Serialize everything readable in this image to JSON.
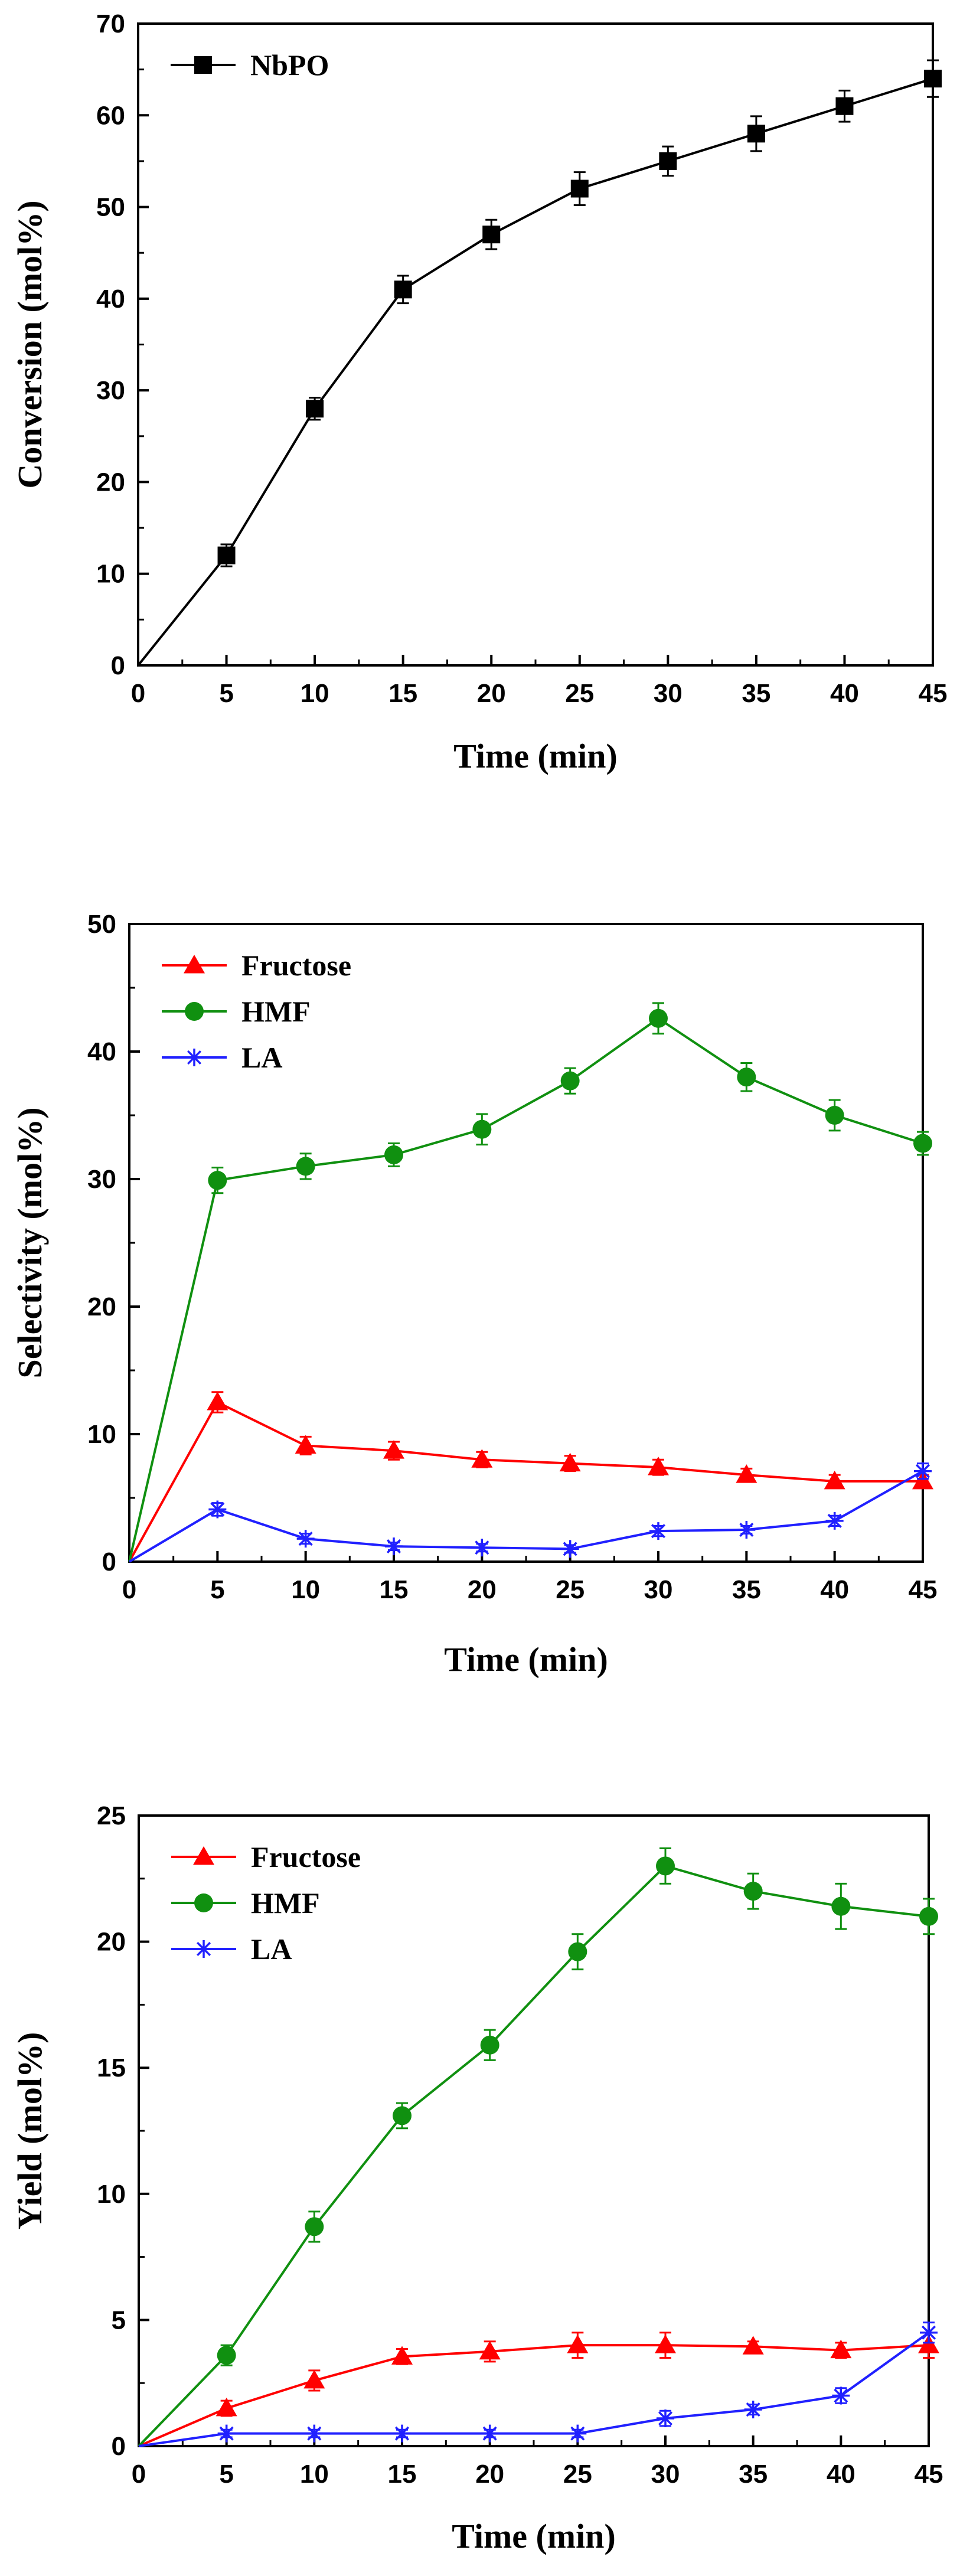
{
  "chart_data": [
    {
      "id": "conversion",
      "type": "line",
      "title": "",
      "xlabel": "Time (min)",
      "ylabel": "Conversion (mol%)",
      "xlim": [
        0,
        45
      ],
      "ylim": [
        0,
        70
      ],
      "xticks": [
        0,
        5,
        10,
        15,
        20,
        25,
        30,
        35,
        40,
        45
      ],
      "yticks": [
        0,
        10,
        20,
        30,
        40,
        50,
        60,
        70
      ],
      "grid": false,
      "legend": "top-left",
      "series": [
        {
          "name": "NbPO",
          "color": "#000000",
          "marker": "square",
          "x": [
            0,
            5,
            10,
            15,
            20,
            25,
            30,
            35,
            40,
            45
          ],
          "y": [
            0,
            12,
            28,
            41,
            47,
            52,
            55,
            58,
            61,
            64
          ],
          "err": [
            0,
            1.2,
            1.2,
            1.5,
            1.6,
            1.8,
            1.6,
            1.9,
            1.7,
            2.0
          ]
        }
      ]
    },
    {
      "id": "selectivity",
      "type": "line",
      "title": "",
      "xlabel": "Time (min)",
      "ylabel": "Selectivity (mol%)",
      "xlim": [
        0,
        45
      ],
      "ylim": [
        0,
        50
      ],
      "xticks": [
        0,
        5,
        10,
        15,
        20,
        25,
        30,
        35,
        40,
        45
      ],
      "yticks": [
        0,
        10,
        20,
        30,
        40,
        50
      ],
      "grid": false,
      "legend": "top-left",
      "series": [
        {
          "name": "Fructose",
          "color": "#ff0000",
          "marker": "triangle",
          "x": [
            0,
            5,
            10,
            15,
            20,
            25,
            30,
            35,
            40,
            45
          ],
          "y": [
            0,
            12.5,
            9.1,
            8.7,
            8.0,
            7.7,
            7.4,
            6.8,
            6.3,
            6.3
          ],
          "err": [
            0,
            0.8,
            0.7,
            0.7,
            0.6,
            0.6,
            0.6,
            0.5,
            0.5,
            0.5
          ]
        },
        {
          "name": "HMF",
          "color": "#109010",
          "marker": "circle",
          "x": [
            0,
            5,
            10,
            15,
            20,
            25,
            30,
            35,
            40,
            45
          ],
          "y": [
            0,
            29.9,
            31.0,
            31.9,
            33.9,
            37.7,
            42.6,
            38.0,
            35.0,
            32.8
          ],
          "err": [
            0,
            1.0,
            1.0,
            0.9,
            1.2,
            1.0,
            1.2,
            1.1,
            1.2,
            0.9
          ]
        },
        {
          "name": "LA",
          "color": "#2020ff",
          "marker": "asterisk",
          "x": [
            0,
            5,
            10,
            15,
            20,
            25,
            30,
            35,
            40,
            45
          ],
          "y": [
            0,
            4.1,
            1.8,
            1.2,
            1.1,
            1.0,
            2.4,
            2.5,
            3.2,
            7.1
          ],
          "err": [
            0,
            0.5,
            0.4,
            0.3,
            0.3,
            0.3,
            0.4,
            0.3,
            0.4,
            0.6
          ]
        }
      ]
    },
    {
      "id": "yield",
      "type": "line",
      "title": "",
      "xlabel": "Time (min)",
      "ylabel": "Yield (mol%)",
      "xlim": [
        0,
        45
      ],
      "ylim": [
        0,
        25
      ],
      "xticks": [
        0,
        5,
        10,
        15,
        20,
        25,
        30,
        35,
        40,
        45
      ],
      "yticks": [
        0,
        5,
        10,
        15,
        20,
        25
      ],
      "grid": false,
      "legend": "top-left",
      "series": [
        {
          "name": "Fructose",
          "color": "#ff0000",
          "marker": "triangle",
          "x": [
            0,
            5,
            10,
            15,
            20,
            25,
            30,
            35,
            40,
            45
          ],
          "y": [
            0,
            1.5,
            2.6,
            3.55,
            3.75,
            4.0,
            4.0,
            3.95,
            3.8,
            4.0
          ],
          "err": [
            0,
            0.3,
            0.4,
            0.3,
            0.4,
            0.5,
            0.5,
            0.2,
            0.3,
            0.5
          ]
        },
        {
          "name": "HMF",
          "color": "#109010",
          "marker": "circle",
          "x": [
            0,
            5,
            10,
            15,
            20,
            25,
            30,
            35,
            40,
            45
          ],
          "y": [
            0,
            3.6,
            8.7,
            13.1,
            15.9,
            19.6,
            23.0,
            22.0,
            21.4,
            21.0
          ],
          "err": [
            0,
            0.4,
            0.6,
            0.5,
            0.6,
            0.7,
            0.7,
            0.7,
            0.9,
            0.7
          ]
        },
        {
          "name": "LA",
          "color": "#2020ff",
          "marker": "asterisk",
          "x": [
            0,
            5,
            10,
            15,
            20,
            25,
            30,
            35,
            40,
            45
          ],
          "y": [
            0,
            0.5,
            0.5,
            0.5,
            0.5,
            0.5,
            1.1,
            1.45,
            2.0,
            4.5
          ],
          "err": [
            0,
            0.15,
            0.15,
            0.15,
            0.15,
            0.15,
            0.3,
            0.2,
            0.3,
            0.4
          ]
        }
      ]
    }
  ]
}
